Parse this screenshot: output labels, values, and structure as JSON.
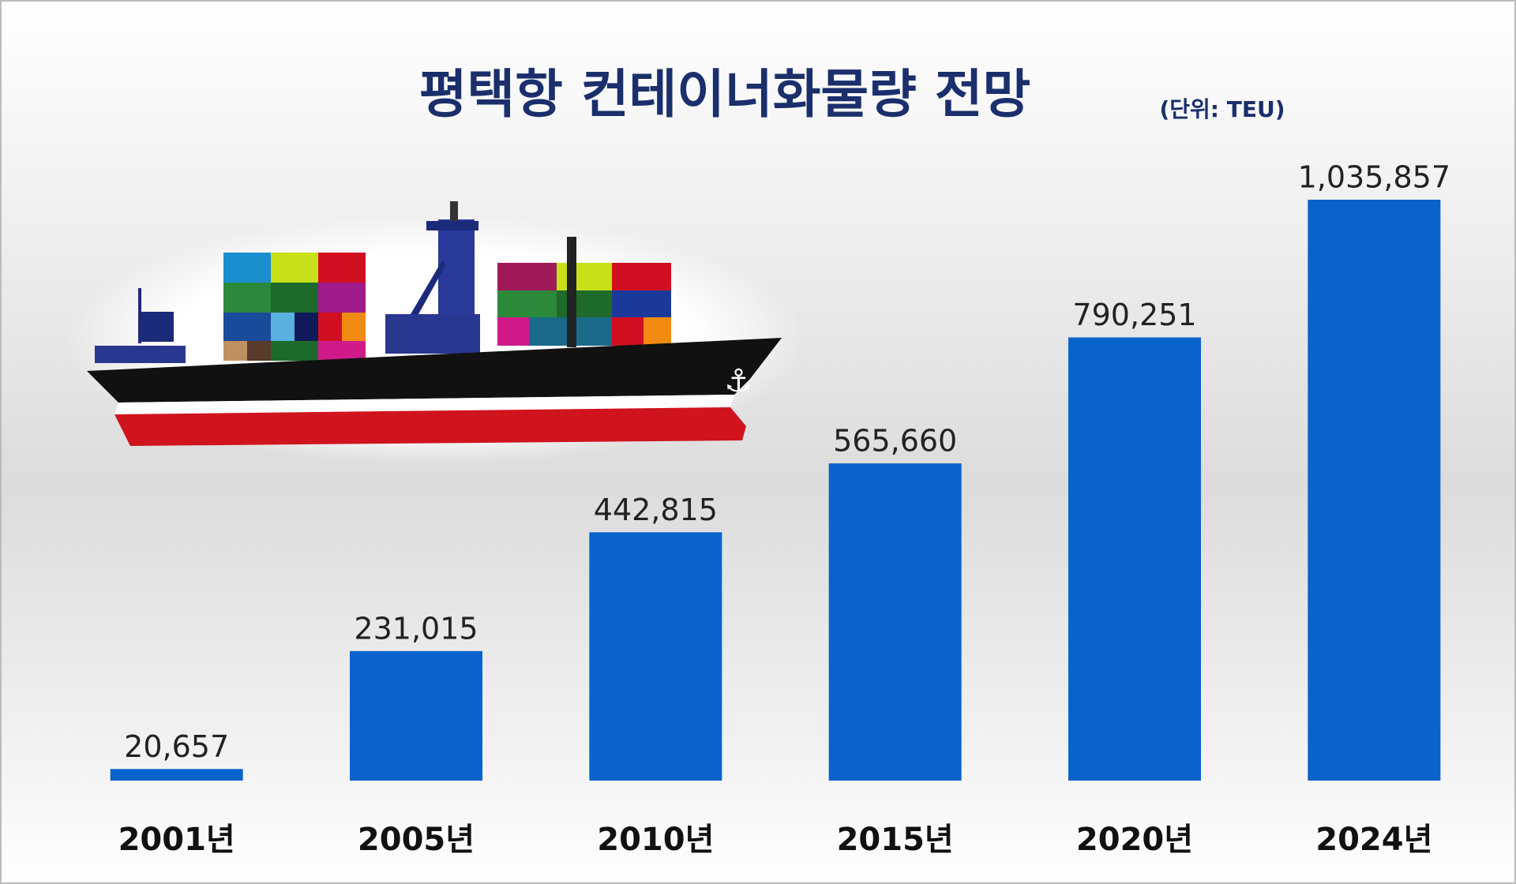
{
  "chart_data": {
    "type": "bar",
    "title": "평택항 컨테이너화물량 전망",
    "subtitle": "(단위: TEU)",
    "categories": [
      "2001년",
      "2005년",
      "2010년",
      "2015년",
      "2020년",
      "2024년"
    ],
    "values": [
      20657,
      231015,
      442815,
      565660,
      790251,
      1035857
    ],
    "value_labels": [
      "20,657",
      "231,015",
      "442,815",
      "565,660",
      "790,251",
      "1,035,857"
    ],
    "color": "#0a63cc"
  }
}
